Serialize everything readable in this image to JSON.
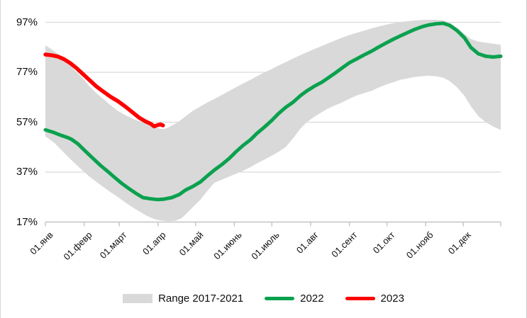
{
  "chart_data": {
    "type": "line",
    "title": "",
    "xlabel": "",
    "ylabel": "",
    "ylim": [
      17,
      97
    ],
    "grid": "horizontal",
    "legend_position": "bottom",
    "days_span": 364,
    "axis_end_day": 364,
    "y_ticks": [
      {
        "label": "97%",
        "value": 97
      },
      {
        "label": "77%",
        "value": 77
      },
      {
        "label": "57%",
        "value": 57
      },
      {
        "label": "37%",
        "value": 37
      },
      {
        "label": "17%",
        "value": 17
      }
    ],
    "x_ticks": [
      {
        "label": "01.янв",
        "day": 0
      },
      {
        "label": "01.февр",
        "day": 31
      },
      {
        "label": "01.март",
        "day": 59
      },
      {
        "label": "01.апр",
        "day": 90
      },
      {
        "label": "01.май",
        "day": 120
      },
      {
        "label": "01.июнь",
        "day": 151
      },
      {
        "label": "01.июль",
        "day": 181
      },
      {
        "label": "01.авг",
        "day": 212
      },
      {
        "label": "01.сент",
        "day": 243
      },
      {
        "label": "01.окт",
        "day": 273
      },
      {
        "label": "01.нояб",
        "day": 304
      },
      {
        "label": "01.дек",
        "day": 334
      }
    ],
    "colors": {
      "band": "#d9d9d9",
      "line_2022": "#0aa14e",
      "line_2023": "#fe0000",
      "gridline": "#d9d9d9",
      "axis": "#c3c3c3"
    },
    "series": [
      {
        "name": "Range 2017-2021",
        "type": "band",
        "color": "#d9d9d9",
        "upper": [
          [
            0,
            87.8
          ],
          [
            7,
            85.5
          ],
          [
            13,
            83.2
          ],
          [
            18,
            81.0
          ],
          [
            24,
            77.5
          ],
          [
            30,
            74.5
          ],
          [
            35,
            71.5
          ],
          [
            41,
            68.5
          ],
          [
            47,
            66.0
          ],
          [
            52,
            63.8
          ],
          [
            58,
            61.5
          ],
          [
            64,
            59.8
          ],
          [
            70,
            58.3
          ],
          [
            76,
            57.2
          ],
          [
            81,
            56.5
          ],
          [
            87,
            54.9
          ],
          [
            92,
            54.4
          ],
          [
            95,
            54.3
          ],
          [
            98,
            54.8
          ],
          [
            101,
            55.6
          ],
          [
            104,
            56.4
          ],
          [
            107,
            57.4
          ],
          [
            112,
            59.3
          ],
          [
            118,
            61.6
          ],
          [
            124,
            63.3
          ],
          [
            129,
            64.8
          ],
          [
            135,
            66.3
          ],
          [
            141,
            67.9
          ],
          [
            147,
            69.5
          ],
          [
            152,
            70.9
          ],
          [
            158,
            72.5
          ],
          [
            164,
            74.0
          ],
          [
            169,
            75.4
          ],
          [
            175,
            76.9
          ],
          [
            181,
            78.3
          ],
          [
            186,
            79.6
          ],
          [
            192,
            81.0
          ],
          [
            198,
            82.5
          ],
          [
            204,
            83.9
          ],
          [
            209,
            85.0
          ],
          [
            215,
            86.3
          ],
          [
            221,
            87.5
          ],
          [
            226,
            88.6
          ],
          [
            232,
            89.8
          ],
          [
            238,
            91.0
          ],
          [
            243,
            91.9
          ],
          [
            249,
            92.8
          ],
          [
            255,
            93.7
          ],
          [
            261,
            94.6
          ],
          [
            266,
            95.3
          ],
          [
            272,
            96.0
          ],
          [
            278,
            96.6
          ],
          [
            284,
            97.1
          ],
          [
            290,
            97.5
          ],
          [
            295,
            97.7
          ],
          [
            301,
            97.9
          ],
          [
            306,
            98.0
          ],
          [
            312,
            98.0
          ],
          [
            318,
            97.8
          ],
          [
            323,
            97.0
          ],
          [
            329,
            94.8
          ],
          [
            335,
            92.4
          ],
          [
            340,
            90.3
          ],
          [
            346,
            89.3
          ],
          [
            352,
            88.8
          ],
          [
            358,
            88.4
          ],
          [
            364,
            88.0
          ]
        ],
        "lower": [
          [
            0,
            51.3
          ],
          [
            7,
            48.8
          ],
          [
            13,
            45.7
          ],
          [
            18,
            43.2
          ],
          [
            24,
            40.3
          ],
          [
            30,
            37.5
          ],
          [
            35,
            35.3
          ],
          [
            41,
            33.0
          ],
          [
            47,
            30.8
          ],
          [
            52,
            29.0
          ],
          [
            58,
            27.0
          ],
          [
            64,
            24.8
          ],
          [
            70,
            22.8
          ],
          [
            76,
            21.0
          ],
          [
            81,
            19.5
          ],
          [
            87,
            18.2
          ],
          [
            92,
            17.6
          ],
          [
            98,
            17.3
          ],
          [
            104,
            17.5
          ],
          [
            109,
            18.6
          ],
          [
            112,
            20.0
          ],
          [
            118,
            23.0
          ],
          [
            124,
            26.0
          ],
          [
            129,
            29.2
          ],
          [
            135,
            32.7
          ],
          [
            141,
            34.0
          ],
          [
            147,
            35.2
          ],
          [
            152,
            36.3
          ],
          [
            158,
            37.5
          ],
          [
            164,
            39.0
          ],
          [
            169,
            40.5
          ],
          [
            175,
            42.0
          ],
          [
            181,
            43.6
          ],
          [
            186,
            45.0
          ],
          [
            192,
            47.0
          ],
          [
            198,
            50.5
          ],
          [
            204,
            54.5
          ],
          [
            209,
            57.0
          ],
          [
            215,
            59.2
          ],
          [
            221,
            61.0
          ],
          [
            226,
            62.5
          ],
          [
            232,
            63.8
          ],
          [
            238,
            65.1
          ],
          [
            243,
            66.4
          ],
          [
            249,
            67.7
          ],
          [
            255,
            68.7
          ],
          [
            261,
            69.6
          ],
          [
            266,
            70.8
          ],
          [
            272,
            72.0
          ],
          [
            278,
            73.0
          ],
          [
            284,
            74.0
          ],
          [
            290,
            74.6
          ],
          [
            295,
            75.1
          ],
          [
            301,
            75.4
          ],
          [
            306,
            75.6
          ],
          [
            312,
            75.4
          ],
          [
            318,
            74.8
          ],
          [
            323,
            73.5
          ],
          [
            329,
            71.0
          ],
          [
            335,
            67.5
          ],
          [
            340,
            63.4
          ],
          [
            346,
            59.5
          ],
          [
            352,
            57.0
          ],
          [
            358,
            55.2
          ],
          [
            364,
            53.9
          ]
        ]
      },
      {
        "name": "2022",
        "type": "line",
        "color": "#0aa14e",
        "points": [
          [
            0,
            53.9
          ],
          [
            6,
            53.0
          ],
          [
            12,
            51.8
          ],
          [
            18,
            50.8
          ],
          [
            21,
            50.1
          ],
          [
            26,
            48.3
          ],
          [
            32,
            45.4
          ],
          [
            38,
            42.5
          ],
          [
            44,
            39.7
          ],
          [
            50,
            37.2
          ],
          [
            55,
            35.0
          ],
          [
            61,
            32.5
          ],
          [
            67,
            30.3
          ],
          [
            72,
            28.6
          ],
          [
            78,
            26.8
          ],
          [
            84,
            26.3
          ],
          [
            90,
            26.0
          ],
          [
            95,
            26.2
          ],
          [
            101,
            26.8
          ],
          [
            107,
            28.0
          ],
          [
            112,
            29.8
          ],
          [
            118,
            31.3
          ],
          [
            124,
            33.1
          ],
          [
            129,
            35.3
          ],
          [
            135,
            37.8
          ],
          [
            141,
            40.0
          ],
          [
            147,
            42.5
          ],
          [
            152,
            45.0
          ],
          [
            158,
            47.7
          ],
          [
            164,
            50.0
          ],
          [
            169,
            52.5
          ],
          [
            175,
            55.0
          ],
          [
            181,
            57.7
          ],
          [
            186,
            60.3
          ],
          [
            192,
            62.9
          ],
          [
            198,
            65.0
          ],
          [
            204,
            67.7
          ],
          [
            209,
            69.5
          ],
          [
            215,
            71.4
          ],
          [
            221,
            73.0
          ],
          [
            226,
            74.7
          ],
          [
            232,
            76.8
          ],
          [
            238,
            79.0
          ],
          [
            243,
            80.8
          ],
          [
            249,
            82.4
          ],
          [
            255,
            84.0
          ],
          [
            261,
            85.5
          ],
          [
            266,
            87.0
          ],
          [
            272,
            88.6
          ],
          [
            278,
            90.2
          ],
          [
            284,
            91.6
          ],
          [
            290,
            93.0
          ],
          [
            295,
            94.1
          ],
          [
            301,
            95.2
          ],
          [
            306,
            95.9
          ],
          [
            312,
            96.4
          ],
          [
            318,
            96.6
          ],
          [
            323,
            95.8
          ],
          [
            329,
            93.7
          ],
          [
            335,
            90.8
          ],
          [
            340,
            87.0
          ],
          [
            346,
            84.4
          ],
          [
            352,
            83.4
          ],
          [
            358,
            83.1
          ],
          [
            364,
            83.4
          ]
        ]
      },
      {
        "name": "2023",
        "type": "line",
        "color": "#fe0000",
        "points": [
          [
            0,
            84.1
          ],
          [
            5,
            83.8
          ],
          [
            10,
            83.3
          ],
          [
            15,
            82.2
          ],
          [
            20,
            80.6
          ],
          [
            25,
            78.6
          ],
          [
            31,
            75.8
          ],
          [
            36,
            73.5
          ],
          [
            41,
            71.2
          ],
          [
            47,
            69.0
          ],
          [
            52,
            67.2
          ],
          [
            58,
            65.4
          ],
          [
            64,
            63.2
          ],
          [
            70,
            60.8
          ],
          [
            75,
            58.8
          ],
          [
            80,
            57.3
          ],
          [
            84,
            56.4
          ],
          [
            87,
            55.3
          ],
          [
            90,
            55.9
          ],
          [
            92,
            56.1
          ],
          [
            94,
            55.7
          ]
        ]
      }
    ]
  },
  "legend": {
    "band_label": "Range 2017-2021",
    "line2022_label": "2022",
    "line2023_label": "2023"
  }
}
